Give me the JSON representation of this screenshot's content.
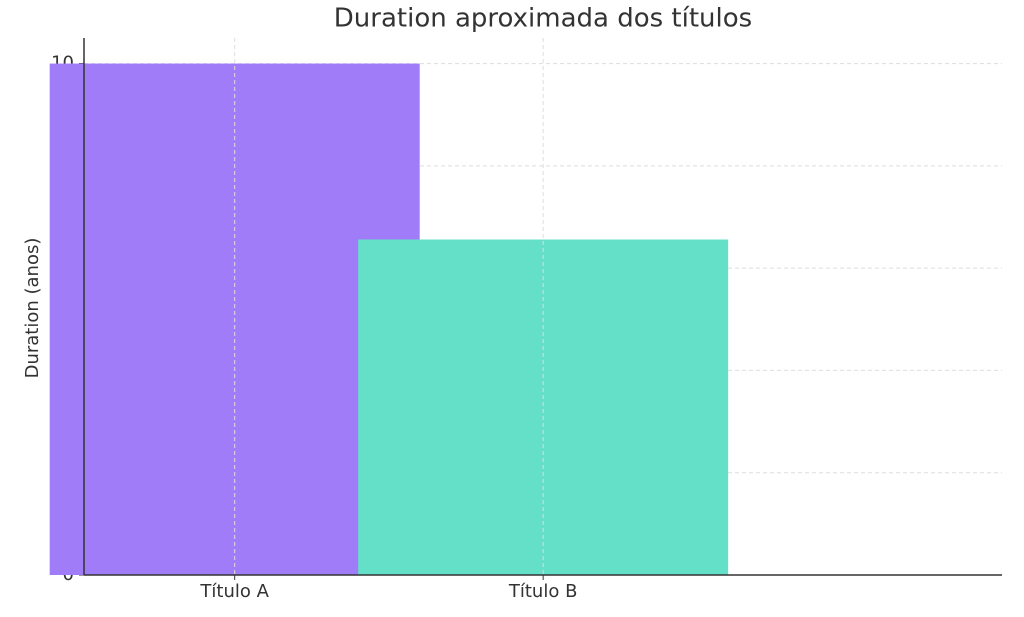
{
  "chart_data": {
    "type": "bar",
    "title": "Duration aproximada dos títulos",
    "y_label": "Duration (anos)",
    "categories": [
      "Título A",
      "Título B"
    ],
    "values": [
      10,
      6.56
    ],
    "colors": [
      "#a07cf8",
      "#64dfc8"
    ],
    "ylim": [
      0,
      10.5
    ],
    "yticks": [
      0,
      2,
      4,
      6,
      8,
      10
    ],
    "grid": true
  }
}
